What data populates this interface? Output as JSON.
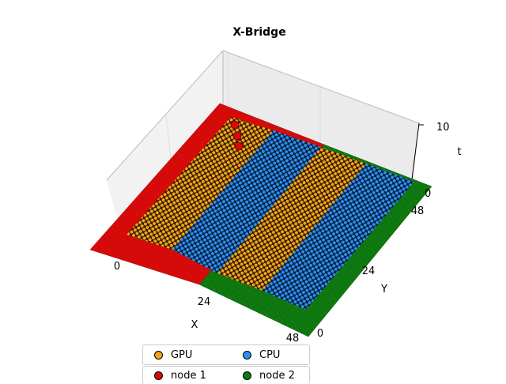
{
  "chart_data": {
    "type": "scatter",
    "projection": "3d",
    "title": "X-Bridge",
    "xlabel": "X",
    "ylabel": "Y",
    "zlabel": "t",
    "xticks": [
      "0",
      "24",
      "48"
    ],
    "yticks": [
      "0",
      "24",
      "48"
    ],
    "zticks": [
      "0",
      "10"
    ],
    "xlim": [
      0,
      48
    ],
    "ylim": [
      0,
      48
    ],
    "zlim": [
      0,
      10
    ],
    "grid": true,
    "legend_placement": "bottom-center",
    "series": [
      {
        "name": "GPU",
        "color": "#f5a31a",
        "region": "two diagonal bands of points at t = 0"
      },
      {
        "name": "CPU",
        "color": "#2c8ef0",
        "region": "two diagonal bands of points at t = 0"
      },
      {
        "name": "node 1",
        "color": "#d90a0a",
        "region": "surface at t = 0 plus a short column of points at t > 0"
      },
      {
        "name": "node 2",
        "color": "#0f7a0f",
        "region": "surface at t = 0"
      }
    ]
  },
  "legend": {
    "row1": [
      {
        "label": "GPU",
        "color": "#f5a31a"
      },
      {
        "label": "CPU",
        "color": "#2c8ef0"
      }
    ],
    "row2": [
      {
        "label": "node 1",
        "color": "#d90a0a"
      },
      {
        "label": "node 2",
        "color": "#0f7a0f"
      }
    ]
  }
}
